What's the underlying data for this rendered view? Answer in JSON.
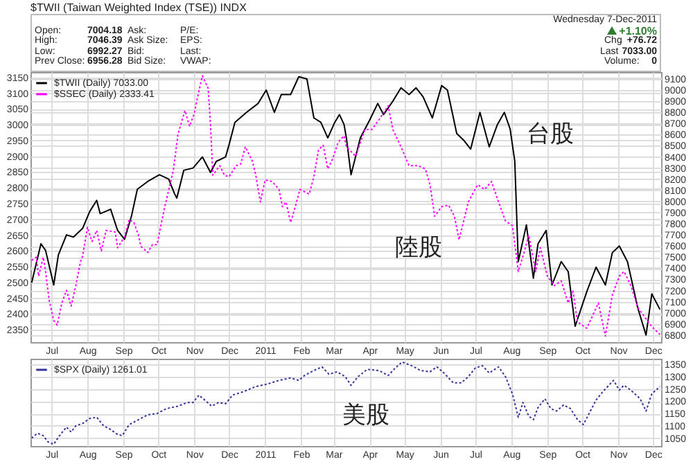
{
  "chart_data": [
    {
      "type": "line",
      "title": "$TWII (Taiwan Weighted Index (TSE)) INDX",
      "annotations": [
        "Open:",
        "7004.18",
        "High:",
        "7046.39",
        "Low:",
        "6992.27",
        "Prev Close:",
        "6956.28",
        "Ask:",
        "Ask Size:",
        "Bid:",
        "Bid Size:",
        "P/E:",
        "EPS:",
        "Last:",
        "VWAP:",
        "Wednesday 7-Dec-2011",
        "+1.10%",
        "Chg",
        "+76.72",
        "Last",
        "7033.00",
        "Volume:",
        "0",
        "台股",
        "陸股"
      ],
      "series": [
        {
          "name": "$TWII (Daily) 7033.00",
          "color": "#000000",
          "axis": "y2",
          "line_style": "solid",
          "x": [
            "2010-06-14",
            "2010-06-22",
            "2010-06-26",
            "2010-07-03",
            "2010-07-07",
            "2010-07-14",
            "2010-07-20",
            "2010-07-28",
            "2010-08-03",
            "2010-08-09",
            "2010-08-12",
            "2010-08-21",
            "2010-08-27",
            "2010-09-02",
            "2010-09-08",
            "2010-09-13",
            "2010-09-22",
            "2010-10-02",
            "2010-10-10",
            "2010-10-15",
            "2010-10-17",
            "2010-10-23",
            "2010-10-31",
            "2010-11-08",
            "2010-11-15",
            "2010-11-20",
            "2010-11-28",
            "2010-12-01",
            "2010-12-06",
            "2010-12-16",
            "2010-12-26",
            "2011-01-02",
            "2011-01-09",
            "2011-01-15",
            "2011-01-23",
            "2011-01-30",
            "2011-02-06",
            "2011-02-12",
            "2011-02-18",
            "2011-02-24",
            "2011-03-02",
            "2011-03-06",
            "2011-03-10",
            "2011-03-12",
            "2011-03-16",
            "2011-03-24",
            "2011-04-01",
            "2011-04-08",
            "2011-04-13",
            "2011-04-21",
            "2011-04-28",
            "2011-05-05",
            "2011-05-11",
            "2011-05-17",
            "2011-05-25",
            "2011-06-02",
            "2011-06-07",
            "2011-06-15",
            "2011-06-21",
            "2011-06-27",
            "2011-07-05",
            "2011-07-13",
            "2011-07-20",
            "2011-07-26",
            "2011-07-31",
            "2011-08-04",
            "2011-08-07",
            "2011-08-14",
            "2011-08-20",
            "2011-08-24",
            "2011-08-31",
            "2011-09-05",
            "2011-09-13",
            "2011-09-19",
            "2011-09-25",
            "2011-10-05",
            "2011-10-13",
            "2011-10-21",
            "2011-10-27",
            "2011-11-02",
            "2011-11-09",
            "2011-11-18",
            "2011-11-25",
            "2011-11-30",
            "2011-12-07"
          ],
          "values": [
            7270,
            7620,
            7560,
            7250,
            7520,
            7700,
            7680,
            7760,
            7910,
            8010,
            7890,
            7930,
            7740,
            7660,
            7870,
            8110,
            8180,
            8240,
            8200,
            8070,
            8030,
            8280,
            8300,
            8400,
            8260,
            8360,
            8400,
            8510,
            8710,
            8800,
            8880,
            9000,
            8800,
            8960,
            8960,
            9120,
            9100,
            8750,
            8710,
            8570,
            8710,
            8780,
            8690,
            8570,
            8240,
            8570,
            8730,
            8880,
            8780,
            8900,
            9020,
            8960,
            9020,
            8940,
            8750,
            9040,
            9000,
            8610,
            8550,
            8470,
            8800,
            8490,
            8690,
            8800,
            8650,
            8360,
            7460,
            7790,
            7310,
            7620,
            7740,
            7250,
            7460,
            7370,
            6880,
            7190,
            7410,
            7250,
            7540,
            7600,
            7460,
            7040,
            6800,
            7170,
            7030
          ]
        },
        {
          "name": "$SSEC (Daily) 2333.41",
          "color": "#ff00ff",
          "line_style": "dotted",
          "x": [
            "2010-06-14",
            "2010-06-18",
            "2010-06-20",
            "2010-06-24",
            "2010-06-26",
            "2010-06-29",
            "2010-07-03",
            "2010-07-06",
            "2010-07-10",
            "2010-07-14",
            "2010-07-18",
            "2010-07-22",
            "2010-07-26",
            "2010-07-28",
            "2010-08-01",
            "2010-08-05",
            "2010-08-09",
            "2010-08-13",
            "2010-08-17",
            "2010-08-25",
            "2010-08-27",
            "2010-09-02",
            "2010-09-06",
            "2010-09-10",
            "2010-09-14",
            "2010-09-16",
            "2010-09-22",
            "2010-09-26",
            "2010-09-30",
            "2010-10-06",
            "2010-10-14",
            "2010-10-18",
            "2010-10-24",
            "2010-10-28",
            "2010-11-01",
            "2010-11-04",
            "2010-11-08",
            "2010-11-13",
            "2010-11-15",
            "2010-11-17",
            "2010-11-23",
            "2010-11-27",
            "2010-12-01",
            "2010-12-07",
            "2010-12-11",
            "2010-12-15",
            "2010-12-21",
            "2010-12-24",
            "2010-12-28",
            "2011-01-01",
            "2011-01-07",
            "2011-01-13",
            "2011-01-16",
            "2011-01-19",
            "2011-01-23",
            "2011-01-27",
            "2011-01-31",
            "2011-02-08",
            "2011-02-12",
            "2011-02-16",
            "2011-02-20",
            "2011-02-24",
            "2011-02-28",
            "2011-03-05",
            "2011-03-10",
            "2011-03-12",
            "2011-03-20",
            "2011-03-28",
            "2011-04-03",
            "2011-04-09",
            "2011-04-17",
            "2011-04-21",
            "2011-04-28",
            "2011-05-05",
            "2011-05-13",
            "2011-05-19",
            "2011-05-23",
            "2011-05-27",
            "2011-06-02",
            "2011-06-08",
            "2011-06-13",
            "2011-06-17",
            "2011-06-25",
            "2011-07-03",
            "2011-07-09",
            "2011-07-15",
            "2011-07-21",
            "2011-07-27",
            "2011-08-02",
            "2011-08-07",
            "2011-08-12",
            "2011-08-16",
            "2011-08-22",
            "2011-08-26",
            "2011-09-01",
            "2011-09-07",
            "2011-09-13",
            "2011-09-19",
            "2011-09-23",
            "2011-09-27",
            "2011-10-05",
            "2011-10-15",
            "2011-10-21",
            "2011-10-27",
            "2011-11-02",
            "2011-11-06",
            "2011-11-12",
            "2011-11-18",
            "2011-11-24",
            "2011-11-30",
            "2011-12-07"
          ],
          "values": [
            2570,
            2580,
            2520,
            2580,
            2535,
            2445,
            2380,
            2365,
            2435,
            2475,
            2425,
            2490,
            2565,
            2585,
            2675,
            2630,
            2665,
            2600,
            2665,
            2660,
            2610,
            2645,
            2700,
            2690,
            2650,
            2615,
            2595,
            2620,
            2620,
            2730,
            2855,
            2970,
            3045,
            2995,
            3035,
            3090,
            3155,
            3115,
            3000,
            2840,
            2870,
            2840,
            2835,
            2870,
            2875,
            2930,
            2885,
            2840,
            2755,
            2825,
            2820,
            2795,
            2740,
            2755,
            2690,
            2740,
            2795,
            2780,
            2835,
            2920,
            2935,
            2860,
            2890,
            2945,
            2965,
            2930,
            2900,
            2985,
            2985,
            3015,
            3060,
            2985,
            2930,
            2870,
            2870,
            2860,
            2810,
            2710,
            2740,
            2745,
            2710,
            2635,
            2755,
            2810,
            2795,
            2820,
            2755,
            2695,
            2680,
            2535,
            2595,
            2650,
            2535,
            2610,
            2520,
            2490,
            2505,
            2435,
            2475,
            2375,
            2355,
            2435,
            2330,
            2460,
            2520,
            2535,
            2490,
            2420,
            2390,
            2360,
            2335
          ]
        }
      ],
      "xlim": [
        "2010-06-13",
        "2011-12-08"
      ],
      "xticks": [
        {
          "value": "2010-07-01",
          "label": "Jul"
        },
        {
          "value": "2010-08-01",
          "label": "Aug"
        },
        {
          "value": "2010-09-01",
          "label": "Sep"
        },
        {
          "value": "2010-10-01",
          "label": "Oct"
        },
        {
          "value": "2010-11-01",
          "label": "Nov"
        },
        {
          "value": "2010-12-01",
          "label": "Dec"
        },
        {
          "value": "2011-01-01",
          "label": "2011"
        },
        {
          "value": "2011-02-01",
          "label": "Feb"
        },
        {
          "value": "2011-03-01",
          "label": "Mar"
        },
        {
          "value": "2011-04-01",
          "label": "Apr"
        },
        {
          "value": "2011-05-01",
          "label": "May"
        },
        {
          "value": "2011-06-01",
          "label": "Jun"
        },
        {
          "value": "2011-07-01",
          "label": "Jul"
        },
        {
          "value": "2011-08-01",
          "label": "Aug"
        },
        {
          "value": "2011-09-01",
          "label": "Sep"
        },
        {
          "value": "2011-10-01",
          "label": "Oct"
        },
        {
          "value": "2011-11-01",
          "label": "Nov"
        },
        {
          "value": "2011-12-01",
          "label": "Dec"
        }
      ],
      "ylim": [
        2311,
        3167
      ],
      "yticks": [
        2350,
        2400,
        2450,
        2500,
        2550,
        2600,
        2650,
        2700,
        2750,
        2800,
        2850,
        2900,
        2950,
        3000,
        3050,
        3100,
        3150
      ],
      "y2lim": [
        6737,
        9162
      ],
      "y2ticks": [
        6800,
        6900,
        7000,
        7100,
        7200,
        7300,
        7400,
        7500,
        7600,
        7700,
        7800,
        7900,
        8000,
        8100,
        8200,
        8300,
        8400,
        8500,
        8600,
        8700,
        8800,
        8900,
        9000,
        9100
      ],
      "grid": true,
      "legend": "top left"
    },
    {
      "type": "line",
      "annotations": [
        "美股"
      ],
      "series": [
        {
          "name": "$SPX (Daily) 1261.01",
          "color": "#333399",
          "axis": "y2",
          "line_style": "dotted",
          "x": [
            "2010-06-14",
            "2010-06-19",
            "2010-06-24",
            "2010-06-28",
            "2010-07-03",
            "2010-07-08",
            "2010-07-14",
            "2010-07-18",
            "2010-07-22",
            "2010-07-28",
            "2010-08-03",
            "2010-08-09",
            "2010-08-15",
            "2010-08-21",
            "2010-08-27",
            "2010-08-31",
            "2010-09-06",
            "2010-09-14",
            "2010-09-22",
            "2010-09-30",
            "2010-10-08",
            "2010-10-18",
            "2010-10-26",
            "2010-10-31",
            "2010-11-05",
            "2010-11-10",
            "2010-11-16",
            "2010-11-22",
            "2010-11-28",
            "2010-12-04",
            "2010-12-14",
            "2010-12-24",
            "2011-01-03",
            "2011-01-13",
            "2011-01-23",
            "2011-01-30",
            "2011-02-04",
            "2011-02-12",
            "2011-02-19",
            "2011-02-25",
            "2011-03-04",
            "2011-03-11",
            "2011-03-16",
            "2011-03-22",
            "2011-03-30",
            "2011-04-09",
            "2011-04-17",
            "2011-04-23",
            "2011-04-29",
            "2011-05-07",
            "2011-05-15",
            "2011-05-23",
            "2011-05-29",
            "2011-06-04",
            "2011-06-12",
            "2011-06-19",
            "2011-06-25",
            "2011-07-01",
            "2011-07-07",
            "2011-07-13",
            "2011-07-21",
            "2011-07-27",
            "2011-08-02",
            "2011-08-07",
            "2011-08-11",
            "2011-08-16",
            "2011-08-20",
            "2011-08-24",
            "2011-08-30",
            "2011-09-04",
            "2011-09-09",
            "2011-09-15",
            "2011-09-21",
            "2011-09-27",
            "2011-10-02",
            "2011-10-07",
            "2011-10-13",
            "2011-10-19",
            "2011-10-28",
            "2011-11-02",
            "2011-11-06",
            "2011-11-12",
            "2011-11-20",
            "2011-11-25",
            "2011-11-30",
            "2011-12-07"
          ],
          "values": [
            1050,
            1070,
            1060,
            1035,
            1025,
            1060,
            1095,
            1075,
            1100,
            1110,
            1130,
            1135,
            1100,
            1085,
            1065,
            1060,
            1105,
            1125,
            1145,
            1150,
            1170,
            1180,
            1195,
            1195,
            1225,
            1205,
            1180,
            1195,
            1190,
            1225,
            1240,
            1260,
            1270,
            1285,
            1295,
            1285,
            1305,
            1325,
            1340,
            1310,
            1320,
            1300,
            1265,
            1300,
            1330,
            1325,
            1305,
            1335,
            1360,
            1345,
            1325,
            1320,
            1340,
            1315,
            1275,
            1275,
            1300,
            1335,
            1345,
            1315,
            1340,
            1300,
            1230,
            1135,
            1195,
            1140,
            1125,
            1175,
            1210,
            1170,
            1160,
            1185,
            1170,
            1125,
            1105,
            1150,
            1205,
            1240,
            1285,
            1245,
            1265,
            1245,
            1210,
            1160,
            1230,
            1260
          ]
        }
      ],
      "xlim": [
        "2010-06-13",
        "2011-12-08"
      ],
      "xticks": [
        {
          "value": "2010-07-01",
          "label": "Jul"
        },
        {
          "value": "2010-08-01",
          "label": "Aug"
        },
        {
          "value": "2010-09-01",
          "label": "Sep"
        },
        {
          "value": "2010-10-01",
          "label": "Oct"
        },
        {
          "value": "2010-11-01",
          "label": "Nov"
        },
        {
          "value": "2010-12-01",
          "label": "Dec"
        },
        {
          "value": "2011-01-01",
          "label": "2011"
        },
        {
          "value": "2011-02-01",
          "label": "Feb"
        },
        {
          "value": "2011-03-01",
          "label": "Mar"
        },
        {
          "value": "2011-04-01",
          "label": "Apr"
        },
        {
          "value": "2011-05-01",
          "label": "May"
        },
        {
          "value": "2011-06-01",
          "label": "Jun"
        },
        {
          "value": "2011-07-01",
          "label": "Jul"
        },
        {
          "value": "2011-08-01",
          "label": "Aug"
        },
        {
          "value": "2011-09-01",
          "label": "Sep"
        },
        {
          "value": "2011-10-01",
          "label": "Oct"
        },
        {
          "value": "2011-11-01",
          "label": "Nov"
        },
        {
          "value": "2011-12-01",
          "label": "Dec"
        }
      ],
      "y2lim": [
        1018,
        1373
      ],
      "y2ticks": [
        1050,
        1100,
        1150,
        1200,
        1250,
        1300,
        1350
      ],
      "grid": true,
      "legend": "top left"
    }
  ]
}
